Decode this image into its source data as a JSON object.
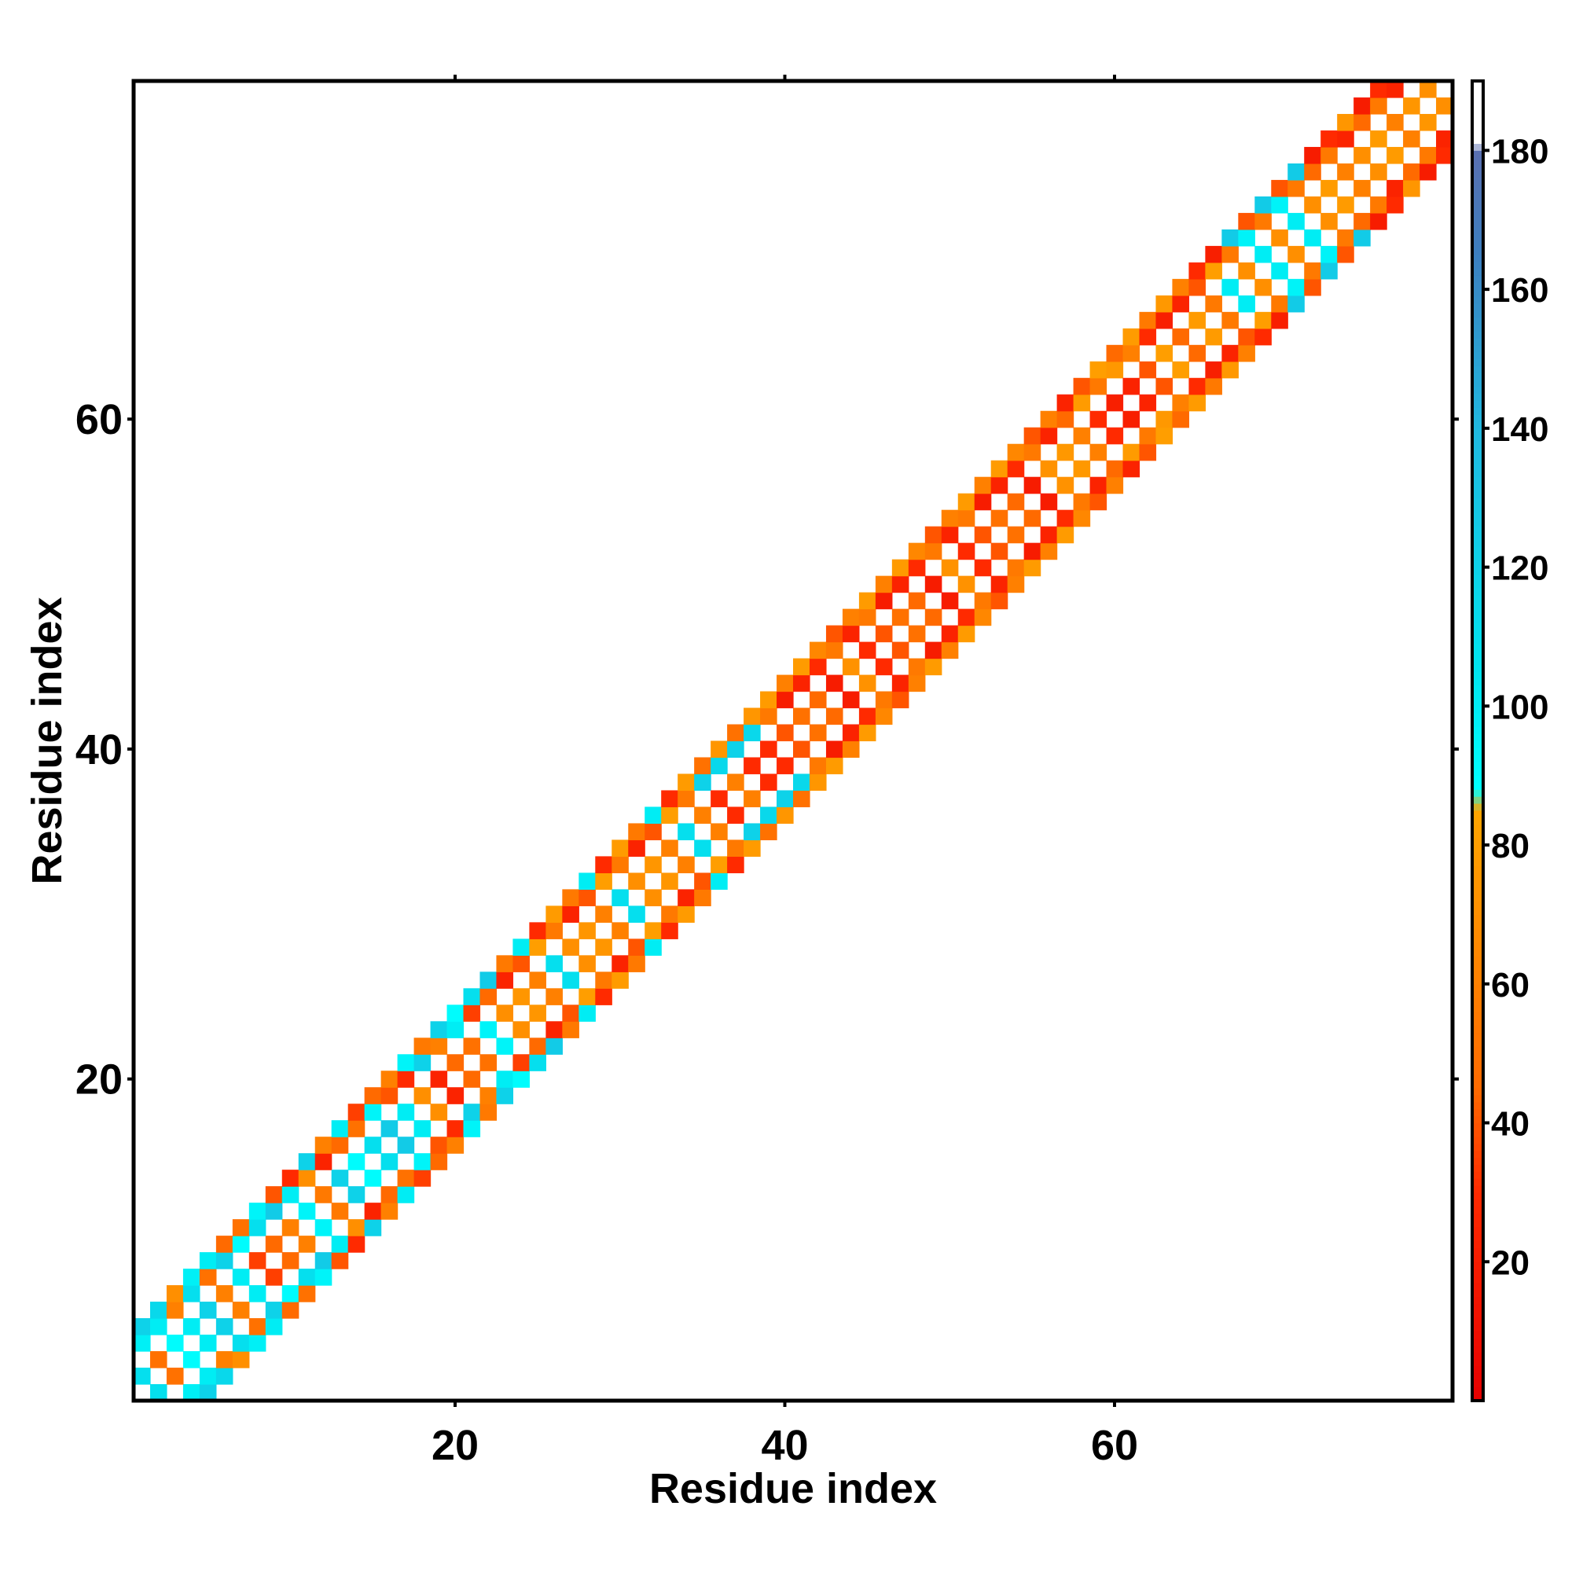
{
  "chart_data": {
    "type": "heatmap",
    "title": "",
    "xlabel": "Residue index",
    "ylabel": "Residue index",
    "xlim": [
      1,
      80
    ],
    "ylim": [
      1,
      80
    ],
    "x_ticks": [
      20,
      40,
      60
    ],
    "y_ticks": [
      20,
      40,
      60
    ],
    "grid": false,
    "legend": "colorbar right",
    "colorbar": {
      "range": [
        0,
        190
      ],
      "ticks": [
        20,
        40,
        60,
        80,
        100,
        120,
        140,
        160,
        180
      ],
      "stops": [
        {
          "value": 0,
          "color": "#e60000"
        },
        {
          "value": 30,
          "color": "#ff2a00"
        },
        {
          "value": 45,
          "color": "#ff6a00"
        },
        {
          "value": 60,
          "color": "#ff8000"
        },
        {
          "value": 85,
          "color": "#ffa500"
        },
        {
          "value": 88,
          "color": "#00ffff"
        },
        {
          "value": 105,
          "color": "#00e5f0"
        },
        {
          "value": 140,
          "color": "#20b8e0"
        },
        {
          "value": 165,
          "color": "#3c7fc0"
        },
        {
          "value": 180,
          "color": "#5a6fb0"
        },
        {
          "value": 181,
          "color": "#ffffff"
        },
        {
          "value": 190,
          "color": "#ffffff"
        }
      ]
    },
    "band": {
      "description_values": "symmetric banded contact matrix: cells at |i-j| = 1, 3, 4 filled; |i-j| = 0 and 2 empty",
      "offsets": [
        -4,
        -3,
        -1,
        1,
        3,
        4
      ],
      "segments": [
        {
          "from": 1,
          "to": 5,
          "values": [
            110,
            98,
            120,
            50,
            100,
            115,
            90,
            60,
            70,
            100
          ]
        },
        {
          "from": 6,
          "to": 22,
          "values": [
            60,
            120,
            45,
            100,
            90,
            50,
            35,
            110,
            95,
            45,
            125,
            40,
            60,
            100,
            30,
            95,
            70,
            120,
            55,
            25
          ]
        },
        {
          "from": 23,
          "to": 34,
          "values": [
            70,
            25,
            55,
            75,
            40,
            100,
            60,
            80,
            30,
            110,
            55,
            78
          ]
        },
        {
          "from": 35,
          "to": 38,
          "values": [
            60,
            120,
            50,
            30,
            115,
            75
          ]
        },
        {
          "from": 39,
          "to": 56,
          "values": [
            30,
            55,
            78,
            40,
            20,
            60,
            50,
            25,
            78,
            45,
            30,
            65,
            20,
            55,
            40,
            72,
            25,
            60
          ]
        },
        {
          "from": 57,
          "to": 66,
          "values": [
            76,
            45,
            25,
            60,
            78,
            40,
            30,
            55,
            80,
            22
          ]
        },
        {
          "from": 67,
          "to": 71,
          "values": [
            100,
            55,
            125,
            70,
            96,
            40
          ]
        },
        {
          "from": 72,
          "to": 80,
          "values": [
            70,
            45,
            20,
            78,
            55,
            30,
            60,
            25,
            75
          ]
        }
      ]
    }
  }
}
